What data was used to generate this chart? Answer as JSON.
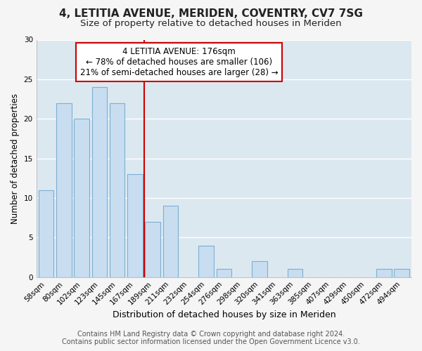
{
  "title": "4, LETITIA AVENUE, MERIDEN, COVENTRY, CV7 7SG",
  "subtitle": "Size of property relative to detached houses in Meriden",
  "xlabel": "Distribution of detached houses by size in Meriden",
  "ylabel": "Number of detached properties",
  "bar_labels": [
    "58sqm",
    "80sqm",
    "102sqm",
    "123sqm",
    "145sqm",
    "167sqm",
    "189sqm",
    "211sqm",
    "232sqm",
    "254sqm",
    "276sqm",
    "298sqm",
    "320sqm",
    "341sqm",
    "363sqm",
    "385sqm",
    "407sqm",
    "429sqm",
    "450sqm",
    "472sqm",
    "494sqm"
  ],
  "bar_values": [
    11,
    22,
    20,
    24,
    22,
    13,
    7,
    9,
    0,
    4,
    1,
    0,
    2,
    0,
    1,
    0,
    0,
    0,
    0,
    1,
    1
  ],
  "bar_color": "#c8ddef",
  "bar_edge_color": "#7bafd4",
  "reference_line_x": 5.5,
  "reference_line_color": "#cc0000",
  "ylim": [
    0,
    30
  ],
  "yticks": [
    0,
    5,
    10,
    15,
    20,
    25,
    30
  ],
  "annotation_line1": "4 LETITIA AVENUE: 176sqm",
  "annotation_line2": "← 78% of detached houses are smaller (106)",
  "annotation_line3": "21% of semi-detached houses are larger (28) →",
  "annotation_box_color": "#ffffff",
  "annotation_box_edgecolor": "#cc0000",
  "footer_line1": "Contains HM Land Registry data © Crown copyright and database right 2024.",
  "footer_line2": "Contains public sector information licensed under the Open Government Licence v3.0.",
  "plot_bg_color": "#dce8f0",
  "fig_bg_color": "#f5f5f5",
  "grid_color": "#ffffff",
  "title_fontsize": 11,
  "subtitle_fontsize": 9.5,
  "tick_fontsize": 7.5,
  "ylabel_fontsize": 8.5,
  "xlabel_fontsize": 9,
  "footer_fontsize": 7,
  "annotation_fontsize": 8.5
}
